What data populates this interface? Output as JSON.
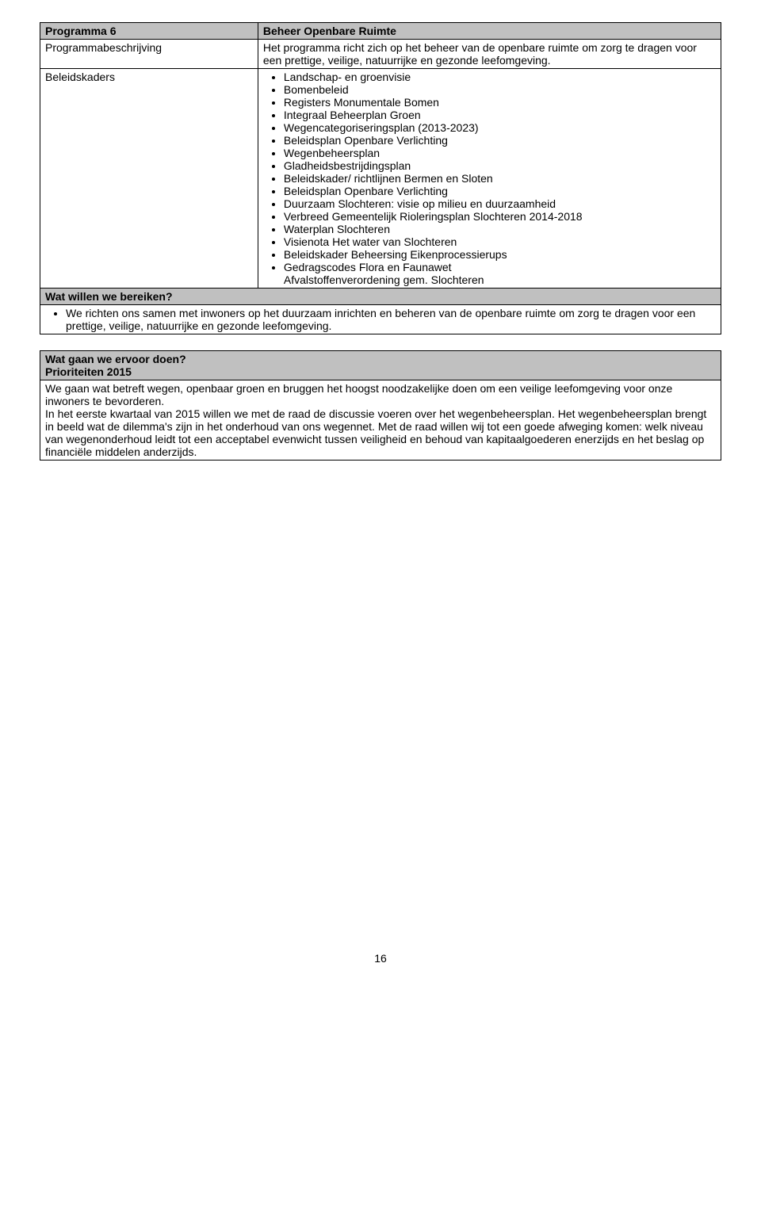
{
  "table1": {
    "r0c0": "Programma 6",
    "r0c1": "Beheer Openbare Ruimte",
    "r1c0": "Programmabeschrijving",
    "r1c1": "Het programma richt zich op het beheer van de openbare ruimte om zorg te dragen voor een prettige, veilige, natuurrijke en gezonde leefomgeving.",
    "r2c0": "Beleidskaders",
    "r2_items": [
      "Landschap- en groenvisie",
      "Bomenbeleid",
      "Registers Monumentale Bomen",
      "Integraal Beheerplan Groen",
      "Wegencategoriseringsplan (2013-2023)",
      "Beleidsplan Openbare Verlichting",
      "Wegenbeheersplan",
      "Gladheidsbestrijdingsplan",
      "Beleidskader/ richtlijnen Bermen en Sloten",
      "Beleidsplan Openbare Verlichting",
      "Duurzaam Slochteren: visie op milieu en duurzaamheid",
      "Verbreed Gemeentelijk Rioleringsplan Slochteren 2014-2018",
      "Waterplan Slochteren",
      "Visienota Het water van Slochteren",
      "Beleidskader Beheersing Eikenprocessierups",
      "Gedragscodes Flora en Faunawet"
    ],
    "r2_tail": "Afvalstoffenverordening gem. Slochteren",
    "r3_header": "Wat willen we bereiken?",
    "r3_item": "We richten ons samen met inwoners op het duurzaam inrichten en beheren van de openbare ruimte om zorg te dragen voor een prettige, veilige, natuurrijke en gezonde leefomgeving."
  },
  "section2": {
    "header": "Wat gaan we ervoor doen?",
    "sub": "Prioriteiten 2015",
    "body": "We gaan wat betreft wegen, openbaar groen en bruggen het hoogst noodzakelijke doen om een veilige leefomgeving voor onze inwoners te bevorderen.\nIn het eerste kwartaal van 2015 willen we met de raad de discussie voeren over het wegenbeheersplan. Het wegenbeheersplan brengt in beeld wat de dilemma's zijn in het onderhoud van ons wegennet. Met de raad willen wij tot een goede afweging komen: welk niveau van wegenonderhoud leidt tot een acceptabel evenwicht tussen veiligheid en behoud van kapitaalgoederen enerzijds en het beslag op financiële middelen anderzijds."
  },
  "page_number": "16"
}
